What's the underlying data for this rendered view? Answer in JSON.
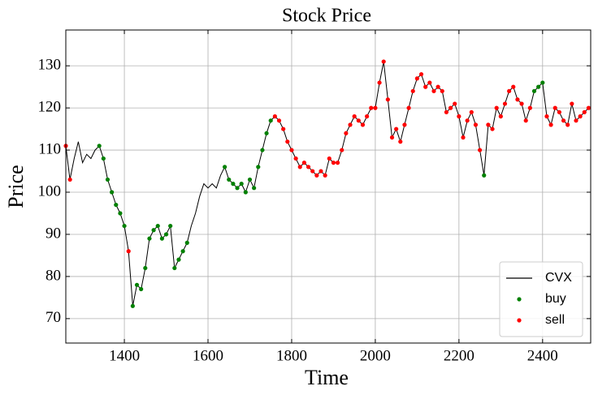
{
  "chart_data": {
    "type": "line",
    "title": "Stock Price",
    "x_label": "Time",
    "y_label": "Price",
    "xlim": [
      1260,
      2515
    ],
    "ylim": [
      64.2,
      138.5
    ],
    "xticks": [
      1400,
      1600,
      1800,
      2000,
      2200,
      2400
    ],
    "yticks": [
      70,
      80,
      90,
      100,
      110,
      120,
      130
    ],
    "grid": true,
    "legend": "lower right",
    "series": [
      {
        "name": "CVX",
        "type": "line",
        "color": "#000000",
        "x": [
          1260,
          1270,
          1280,
          1290,
          1300,
          1310,
          1320,
          1330,
          1340,
          1350,
          1360,
          1370,
          1380,
          1390,
          1400,
          1410,
          1420,
          1430,
          1440,
          1450,
          1460,
          1470,
          1480,
          1490,
          1500,
          1510,
          1520,
          1530,
          1540,
          1550,
          1560,
          1570,
          1580,
          1590,
          1600,
          1610,
          1620,
          1630,
          1640,
          1650,
          1660,
          1670,
          1680,
          1690,
          1700,
          1710,
          1720,
          1730,
          1740,
          1750,
          1760,
          1770,
          1780,
          1790,
          1800,
          1810,
          1820,
          1830,
          1840,
          1850,
          1860,
          1870,
          1880,
          1890,
          1900,
          1910,
          1920,
          1930,
          1940,
          1950,
          1960,
          1970,
          1980,
          1990,
          2000,
          2010,
          2020,
          2030,
          2040,
          2050,
          2060,
          2070,
          2080,
          2090,
          2100,
          2110,
          2120,
          2130,
          2140,
          2150,
          2160,
          2170,
          2180,
          2190,
          2200,
          2210,
          2220,
          2230,
          2240,
          2250,
          2260,
          2270,
          2280,
          2290,
          2300,
          2310,
          2320,
          2330,
          2340,
          2350,
          2360,
          2370,
          2380,
          2390,
          2400,
          2410,
          2420,
          2430,
          2440,
          2450,
          2460,
          2470,
          2480,
          2490,
          2500,
          2510
        ],
        "values": [
          111,
          103,
          108,
          112,
          107,
          109,
          108,
          110,
          111,
          108,
          103,
          100,
          97,
          95,
          92,
          86,
          73,
          78,
          77,
          82,
          89,
          91,
          92,
          89,
          90,
          92,
          82,
          84,
          86,
          88,
          92,
          95,
          99,
          102,
          101,
          102,
          101,
          104,
          106,
          103,
          102,
          101,
          102,
          100,
          103,
          101,
          106,
          110,
          114,
          117,
          118,
          117,
          115,
          112,
          110,
          108,
          106,
          107,
          106,
          105,
          104,
          105,
          104,
          108,
          107,
          107,
          110,
          114,
          116,
          118,
          117,
          116,
          118,
          120,
          120,
          126,
          131,
          122,
          113,
          115,
          112,
          116,
          120,
          124,
          127,
          128,
          125,
          126,
          124,
          125,
          124,
          119,
          120,
          121,
          118,
          113,
          117,
          119,
          116,
          110,
          104,
          116,
          115,
          120,
          118,
          121,
          124,
          125,
          122,
          121,
          117,
          120,
          124,
          125,
          126,
          118,
          116,
          120,
          119,
          117,
          116,
          121,
          117,
          118,
          119,
          120
        ]
      },
      {
        "name": "buy",
        "type": "scatter",
        "color": "#008000",
        "x": [
          1340,
          1350,
          1360,
          1370,
          1380,
          1390,
          1400,
          1420,
          1430,
          1440,
          1450,
          1460,
          1470,
          1480,
          1490,
          1500,
          1510,
          1520,
          1530,
          1540,
          1550,
          1640,
          1650,
          1660,
          1670,
          1680,
          1690,
          1700,
          1710,
          1720,
          1730,
          1740,
          1750,
          2260,
          2380,
          2390,
          2400
        ],
        "values": [
          111,
          108,
          103,
          100,
          97,
          95,
          92,
          73,
          78,
          77,
          82,
          89,
          91,
          92,
          89,
          90,
          92,
          82,
          84,
          86,
          88,
          106,
          103,
          102,
          101,
          102,
          100,
          103,
          101,
          106,
          110,
          114,
          117,
          104,
          124,
          125,
          126
        ]
      },
      {
        "name": "sell",
        "type": "scatter",
        "color": "#ff0000",
        "x": [
          1260,
          1270,
          1410,
          1760,
          1770,
          1780,
          1790,
          1800,
          1810,
          1820,
          1830,
          1840,
          1850,
          1860,
          1870,
          1880,
          1890,
          1900,
          1910,
          1920,
          1930,
          1940,
          1950,
          1960,
          1970,
          1980,
          1990,
          2000,
          2010,
          2020,
          2030,
          2040,
          2050,
          2060,
          2070,
          2080,
          2090,
          2100,
          2110,
          2120,
          2130,
          2140,
          2150,
          2160,
          2170,
          2180,
          2190,
          2200,
          2210,
          2220,
          2230,
          2240,
          2250,
          2270,
          2280,
          2290,
          2300,
          2310,
          2320,
          2330,
          2340,
          2350,
          2360,
          2370,
          2410,
          2420,
          2430,
          2440,
          2450,
          2460,
          2470,
          2480,
          2490,
          2500,
          2510
        ],
        "values": [
          111,
          103,
          86,
          118,
          117,
          115,
          112,
          110,
          108,
          106,
          107,
          106,
          105,
          104,
          105,
          104,
          108,
          107,
          107,
          110,
          114,
          116,
          118,
          117,
          116,
          118,
          120,
          120,
          126,
          131,
          122,
          113,
          115,
          112,
          116,
          120,
          124,
          127,
          128,
          125,
          126,
          124,
          125,
          124,
          119,
          120,
          121,
          118,
          113,
          117,
          119,
          116,
          110,
          116,
          115,
          120,
          118,
          121,
          124,
          125,
          122,
          121,
          117,
          120,
          118,
          116,
          120,
          119,
          117,
          116,
          121,
          117,
          118,
          119,
          120
        ]
      }
    ]
  }
}
